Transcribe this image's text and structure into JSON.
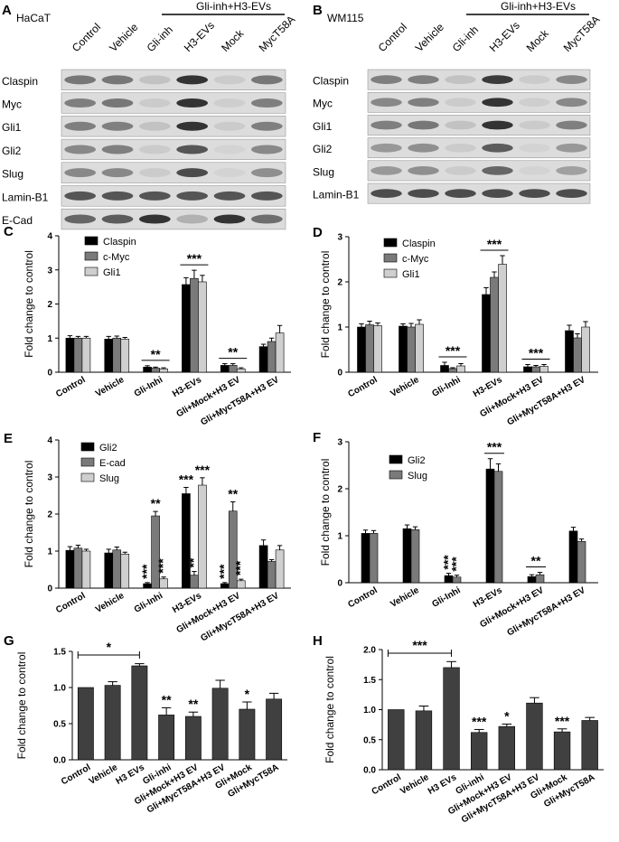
{
  "colors": {
    "s1": "#000000",
    "s2": "#7a7a7a",
    "s3": "#cfcfcf",
    "gray_bar": "#404040",
    "blot_bg": "#dcdcdc",
    "band": "#151515"
  },
  "panelA": {
    "letter": "A",
    "cell": "HaCaT",
    "bracket": "Gli-inh+H3-EVs",
    "lanes": [
      "Control",
      "Vehicle",
      "Gli-inh",
      "H3-EVs",
      "Mock",
      "MycT58A"
    ],
    "rows": [
      {
        "label": "Claspin",
        "bands": [
          0.6,
          0.6,
          0.15,
          1.0,
          0.1,
          0.6
        ]
      },
      {
        "label": "Myc",
        "bands": [
          0.55,
          0.6,
          0.1,
          1.0,
          0.08,
          0.55
        ]
      },
      {
        "label": "Gli1",
        "bands": [
          0.55,
          0.55,
          0.15,
          1.0,
          0.1,
          0.55
        ]
      },
      {
        "label": "Gli2",
        "bands": [
          0.5,
          0.55,
          0.1,
          0.8,
          0.05,
          0.5
        ]
      },
      {
        "label": "Slug",
        "bands": [
          0.5,
          0.5,
          0.1,
          0.85,
          0.05,
          0.45
        ]
      },
      {
        "label": "Lamin-B1",
        "bands": [
          0.8,
          0.8,
          0.8,
          0.8,
          0.8,
          0.8
        ]
      },
      {
        "label": "E-Cad",
        "bands": [
          0.7,
          0.75,
          1.0,
          0.25,
          1.0,
          0.65
        ]
      }
    ]
  },
  "panelB": {
    "letter": "B",
    "cell": "WM115",
    "bracket": "Gli-inh+H3-EVs",
    "lanes": [
      "Control",
      "Vehicle",
      "Gli-inh",
      "H3-EVs",
      "Mock",
      "MycT58A"
    ],
    "rows": [
      {
        "label": "Claspin",
        "bands": [
          0.55,
          0.55,
          0.15,
          0.95,
          0.1,
          0.5
        ]
      },
      {
        "label": "Myc",
        "bands": [
          0.5,
          0.55,
          0.1,
          1.0,
          0.08,
          0.5
        ]
      },
      {
        "label": "Gli1",
        "bands": [
          0.55,
          0.6,
          0.15,
          1.0,
          0.1,
          0.55
        ]
      },
      {
        "label": "Gli2",
        "bands": [
          0.4,
          0.45,
          0.1,
          0.75,
          0.05,
          0.4
        ]
      },
      {
        "label": "Slug",
        "bands": [
          0.4,
          0.45,
          0.1,
          0.7,
          0.05,
          0.35
        ]
      },
      {
        "label": "Lamin-B1",
        "bands": [
          0.85,
          0.85,
          0.85,
          0.85,
          0.85,
          0.85
        ]
      }
    ]
  },
  "chart_data": [
    {
      "panel": "C",
      "type": "bar",
      "ylabel": "Fold change to control",
      "ylim": [
        0,
        4
      ],
      "yticks": [
        0,
        1,
        2,
        3,
        4
      ],
      "categories": [
        "Control",
        "Vehicle",
        "Gli-Inhi",
        "H3-EVs",
        "Gli+Mock+H3 EV",
        "Gli+MycT58A+H3 EV"
      ],
      "series": [
        {
          "name": "Claspin",
          "values": [
            1.0,
            0.97,
            0.15,
            2.57,
            0.2,
            0.75
          ],
          "errors": [
            0.07,
            0.08,
            0.04,
            0.2,
            0.05,
            0.07
          ]
        },
        {
          "name": "c-Myc",
          "values": [
            1.0,
            1.0,
            0.12,
            2.75,
            0.2,
            0.9
          ],
          "errors": [
            0.05,
            0.06,
            0.03,
            0.24,
            0.05,
            0.1
          ]
        },
        {
          "name": "Gli1",
          "values": [
            1.0,
            0.97,
            0.1,
            2.65,
            0.1,
            1.15
          ],
          "errors": [
            0.05,
            0.05,
            0.03,
            0.19,
            0.03,
            0.22
          ]
        }
      ],
      "annotations": [
        {
          "text": "**",
          "group": 2
        },
        {
          "text": "***",
          "group": 3
        },
        {
          "text": "**",
          "group": 4
        }
      ]
    },
    {
      "panel": "D",
      "type": "bar",
      "ylabel": "Fold change to control",
      "ylim": [
        0,
        3
      ],
      "yticks": [
        0,
        1,
        2,
        3
      ],
      "categories": [
        "Control",
        "Vehicle",
        "Gli-Inhi",
        "H3-EVs",
        "Gli+Mock+H3 EV",
        "Gli+MycT58A+H3 EV"
      ],
      "series": [
        {
          "name": "Claspin",
          "values": [
            1.0,
            1.02,
            0.15,
            1.72,
            0.12,
            0.92
          ],
          "errors": [
            0.07,
            0.05,
            0.07,
            0.15,
            0.05,
            0.12
          ]
        },
        {
          "name": "c-Myc",
          "values": [
            1.05,
            1.0,
            0.08,
            2.1,
            0.12,
            0.76
          ],
          "errors": [
            0.08,
            0.08,
            0.02,
            0.12,
            0.03,
            0.09
          ]
        },
        {
          "name": "Gli1",
          "values": [
            1.03,
            1.06,
            0.14,
            2.39,
            0.13,
            1.0
          ],
          "errors": [
            0.06,
            0.1,
            0.05,
            0.19,
            0.04,
            0.12
          ]
        }
      ],
      "annotations": [
        {
          "text": "***",
          "group": 2
        },
        {
          "text": "***",
          "group": 3
        },
        {
          "text": "***",
          "group": 4
        }
      ]
    },
    {
      "panel": "E",
      "type": "bar",
      "ylabel": "Fold change to control",
      "ylim": [
        0,
        4
      ],
      "yticks": [
        0,
        1,
        2,
        3,
        4
      ],
      "categories": [
        "Control",
        "Vehicle",
        "Gli-Inhi",
        "H3-EVs",
        "Gli+Mock+H3 EV",
        "Gli+MycT58A+H3 EV"
      ],
      "series": [
        {
          "name": "Gli2",
          "values": [
            1.02,
            0.95,
            0.12,
            2.55,
            0.12,
            1.15
          ],
          "errors": [
            0.1,
            0.1,
            0.03,
            0.17,
            0.03,
            0.15
          ]
        },
        {
          "name": "E-cad",
          "values": [
            1.08,
            1.03,
            1.95,
            0.35,
            2.08,
            0.72
          ],
          "errors": [
            0.08,
            0.08,
            0.12,
            0.1,
            0.25,
            0.05
          ]
        },
        {
          "name": "Slug",
          "values": [
            1.0,
            0.92,
            0.25,
            2.78,
            0.2,
            1.03
          ],
          "errors": [
            0.05,
            0.05,
            0.05,
            0.2,
            0.04,
            0.12
          ]
        }
      ],
      "bar_annotations": [
        {
          "text": "**",
          "group": 2,
          "series": 1
        },
        {
          "text": "***",
          "group": 2,
          "series": 0,
          "vertical": true
        },
        {
          "text": "***",
          "group": 2,
          "series": 2,
          "vertical": true
        },
        {
          "text": "***",
          "group": 3,
          "series": 0
        },
        {
          "text": "***",
          "group": 3,
          "series": 2
        },
        {
          "text": "**",
          "group": 3,
          "series": 1,
          "vertical": true
        },
        {
          "text": "**",
          "group": 4,
          "series": 1
        },
        {
          "text": "***",
          "group": 4,
          "series": 0,
          "vertical": true
        },
        {
          "text": "***",
          "group": 4,
          "series": 2,
          "vertical": true
        }
      ]
    },
    {
      "panel": "F",
      "type": "bar",
      "ylabel": "Fold change to control",
      "ylim": [
        0,
        3
      ],
      "yticks": [
        0,
        1,
        2,
        3
      ],
      "categories": [
        "Control",
        "Vehicle",
        "Gli-Inhi",
        "H3-EVs",
        "Gli+Mock+H3 EV",
        "Gli+MycT58A+H3 EV"
      ],
      "series": [
        {
          "name": "Gli2",
          "values": [
            1.05,
            1.15,
            0.15,
            2.42,
            0.13,
            1.1
          ],
          "errors": [
            0.07,
            0.08,
            0.05,
            0.22,
            0.04,
            0.08
          ]
        },
        {
          "name": "Slug",
          "values": [
            1.05,
            1.13,
            0.12,
            2.37,
            0.17,
            0.88
          ],
          "errors": [
            0.06,
            0.06,
            0.04,
            0.16,
            0.05,
            0.05
          ]
        }
      ],
      "annotations": [
        {
          "text": "***",
          "group": 3
        },
        {
          "text": "**",
          "group": 4
        }
      ],
      "bar_annotations": [
        {
          "text": "***",
          "group": 2,
          "series": 0,
          "vertical": true
        },
        {
          "text": "***",
          "group": 2,
          "series": 1,
          "vertical": true
        }
      ]
    },
    {
      "panel": "G",
      "type": "bar",
      "ylabel": "Fold change to control",
      "ylim": [
        0,
        1.5
      ],
      "yticks": [
        0.0,
        0.5,
        1.0,
        1.5
      ],
      "categories": [
        "Control",
        "Vehicle",
        "H3 EVs",
        "Gli-inhi",
        "Gli+Mock+H3 EV",
        "Gli+MycT58A+H3 EV",
        "Gli+Mock",
        "Gli+MycT58A"
      ],
      "series": [
        {
          "values": [
            1.0,
            1.03,
            1.3,
            0.62,
            0.6,
            0.99,
            0.7,
            0.84
          ],
          "errors": [
            0,
            0.05,
            0.03,
            0.1,
            0.06,
            0.11,
            0.1,
            0.08
          ]
        }
      ],
      "bar_annotations": [
        {
          "text": "**",
          "group": 3,
          "series": 0
        },
        {
          "text": "**",
          "group": 4,
          "series": 0
        },
        {
          "text": "*",
          "group": 6,
          "series": 0
        }
      ],
      "span": {
        "text": "*",
        "from": 0,
        "to": 2
      }
    },
    {
      "panel": "H",
      "type": "bar",
      "ylabel": "Fold change to control",
      "ylim": [
        0,
        2.0
      ],
      "yticks": [
        0.0,
        0.5,
        1.0,
        1.5,
        2.0
      ],
      "categories": [
        "Control",
        "Vehicle",
        "H3 EVs",
        "Gli-inhi",
        "Gli+Mock+H3 EV",
        "Gli+MycT58A+H3 EV",
        "Gli+Mock",
        "Gli+MycT58A"
      ],
      "series": [
        {
          "values": [
            1.0,
            0.98,
            1.7,
            0.62,
            0.72,
            1.11,
            0.63,
            0.82
          ],
          "errors": [
            0,
            0.08,
            0.1,
            0.05,
            0.04,
            0.09,
            0.05,
            0.05
          ]
        }
      ],
      "bar_annotations": [
        {
          "text": "***",
          "group": 3,
          "series": 0
        },
        {
          "text": "*",
          "group": 4,
          "series": 0
        },
        {
          "text": "***",
          "group": 6,
          "series": 0
        }
      ],
      "span": {
        "text": "***",
        "from": 0,
        "to": 2
      }
    }
  ]
}
